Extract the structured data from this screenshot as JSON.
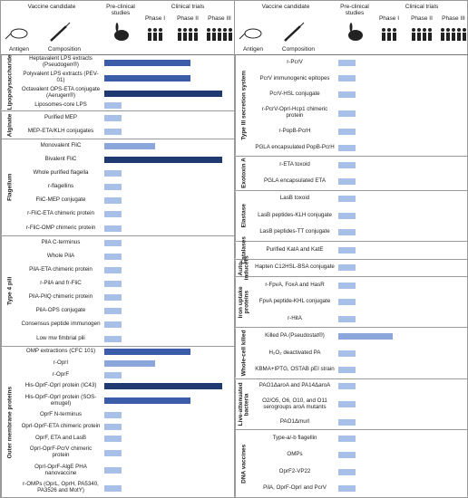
{
  "header": {
    "vaccine_candidate": "Vaccine candidate",
    "antigen": "Antigen",
    "composition": "Composition",
    "preclinical": "Pre-clinical studies",
    "clinical_trials": "Clinical trials",
    "phases": [
      "Phase I",
      "Phase II",
      "Phase III"
    ]
  },
  "panels": [
    {
      "groups": [
        {
          "label": "Lipopolysaccharide",
          "items": [
            {
              "name": "Heptavalent LPS extracts (Pseudogen®)",
              "stage": 2.5,
              "color": "#3b5ca8"
            },
            {
              "name": "Polyvalent LPS extracts (PEV-01)",
              "stage": 2.5,
              "color": "#3b5ca8"
            },
            {
              "name": "Octavalent OPS-ETA conjugate (Aerugen®)",
              "stage": 3.5,
              "color": "#1f3a70"
            },
            {
              "name": "Liposomes-core LPS",
              "stage": 0.45,
              "color": "#a8bfe8"
            }
          ]
        },
        {
          "label": "Alginate",
          "items": [
            {
              "name": "Purified MEP",
              "stage": 0.45,
              "color": "#a8bfe8"
            },
            {
              "name": "MEP-ETA/KLH conjugates",
              "stage": 0.45,
              "color": "#a8bfe8"
            }
          ]
        },
        {
          "label": "Flagellum",
          "items": [
            {
              "name": "Monovalent FliC",
              "stage": 1.4,
              "color": "#8ba6da"
            },
            {
              "name": "Bivalent FliC",
              "stage": 3.5,
              "color": "#1f3a70"
            },
            {
              "name": "Whole purified flagella",
              "stage": 0.45,
              "color": "#a8bfe8"
            },
            {
              "name": "r-flagellins",
              "stage": 0.45,
              "color": "#a8bfe8"
            },
            {
              "name": "FliC-MEP conjugate",
              "stage": 0.45,
              "color": "#a8bfe8"
            },
            {
              "name": "r-FliC-ETA chimeric protein",
              "stage": 0.45,
              "color": "#a8bfe8"
            },
            {
              "name": "r-FliC-OMP chimeric protein",
              "stage": 0.45,
              "color": "#a8bfe8"
            }
          ]
        },
        {
          "label": "Type 4 pili",
          "items": [
            {
              "name": "PilA C-terminus",
              "stage": 0.45,
              "color": "#a8bfe8"
            },
            {
              "name": "Whole PilA",
              "stage": 0.45,
              "color": "#a8bfe8"
            },
            {
              "name": "PilA-ETA chimeric protein",
              "stage": 0.45,
              "color": "#a8bfe8"
            },
            {
              "name": "r-PilA and fr-FliC",
              "stage": 0.45,
              "color": "#a8bfe8"
            },
            {
              "name": "PilA-PilQ chimeric protein",
              "stage": 0.45,
              "color": "#a8bfe8"
            },
            {
              "name": "PilA-OPS conjugate",
              "stage": 0.45,
              "color": "#a8bfe8"
            },
            {
              "name": "Consensus peptide immunogen",
              "stage": 0.45,
              "color": "#a8bfe8"
            },
            {
              "name": "Low mw fimbrial pili",
              "stage": 0.45,
              "color": "#a8bfe8"
            }
          ]
        },
        {
          "label": "Outer membrane proteins",
          "items": [
            {
              "name": "OMP extractions (CFC 101)",
              "stage": 2.5,
              "color": "#3b5ca8"
            },
            {
              "name": "r-OprI",
              "stage": 1.4,
              "color": "#8ba6da"
            },
            {
              "name": "r-OprF",
              "stage": 0.45,
              "color": "#a8bfe8"
            },
            {
              "name": "His-OprF-OprI protein (IC43)",
              "stage": 3.5,
              "color": "#1f3a70"
            },
            {
              "name": "His-OprF-OprI protein (SOS-emugel)",
              "stage": 2.5,
              "color": "#3b5ca8"
            },
            {
              "name": "OprF N-terminus",
              "stage": 0.45,
              "color": "#a8bfe8"
            },
            {
              "name": "OprI-OprF-ETA chimeric protein",
              "stage": 0.45,
              "color": "#a8bfe8"
            },
            {
              "name": "OprF, ETA and LasB",
              "stage": 0.45,
              "color": "#a8bfe8"
            },
            {
              "name": "OprI-OprF-PcrV chimeric protein",
              "stage": 0.45,
              "color": "#a8bfe8"
            },
            {
              "name": "OprI-OprF-AlgE PHA nanovaccine",
              "stage": 0.45,
              "color": "#a8bfe8"
            },
            {
              "name": "r-OMPs (OprL, OprH, PA5340, PA3526 and MotY)",
              "stage": 0.45,
              "color": "#a8bfe8"
            }
          ]
        }
      ]
    },
    {
      "groups": [
        {
          "label": "Type III secretion system",
          "items": [
            {
              "name": "r-PcrV",
              "stage": 0.45,
              "color": "#a8bfe8"
            },
            {
              "name": "PcrV immunogenic epitopes",
              "stage": 0.45,
              "color": "#a8bfe8"
            },
            {
              "name": "PcrV-HSL conjugate",
              "stage": 0.45,
              "color": "#a8bfe8"
            },
            {
              "name": "r-PcrV-OprI-Hcp1 chimeric protein",
              "stage": 0.45,
              "color": "#a8bfe8"
            },
            {
              "name": "r-PopB-PcrH",
              "stage": 0.45,
              "color": "#a8bfe8"
            },
            {
              "name": "PGLA encapsulated PopB-PcrH",
              "stage": 0.45,
              "color": "#a8bfe8"
            }
          ]
        },
        {
          "label": "Exotoxin A",
          "items": [
            {
              "name": "r-ETA toxoid",
              "stage": 0.45,
              "color": "#a8bfe8"
            },
            {
              "name": "PGLA encapsulated ETA",
              "stage": 0.45,
              "color": "#a8bfe8"
            }
          ]
        },
        {
          "label": "Elastase",
          "items": [
            {
              "name": "LasB toxoid",
              "stage": 0.45,
              "color": "#a8bfe8"
            },
            {
              "name": "LasB peptides-KLH conjugate",
              "stage": 0.45,
              "color": "#a8bfe8"
            },
            {
              "name": "LasB peptides-TT conjugate",
              "stage": 0.45,
              "color": "#a8bfe8"
            }
          ]
        },
        {
          "label": "Catalases",
          "items": [
            {
              "name": "Purified KatA and KatE",
              "stage": 0.45,
              "color": "#a8bfe8"
            }
          ]
        },
        {
          "label": "Auto-inducers",
          "items": [
            {
              "name": "Hapten C12HSL-BSA conjugate",
              "stage": 0.45,
              "color": "#a8bfe8"
            }
          ]
        },
        {
          "label": "Iron uptake proteins",
          "items": [
            {
              "name": "r-FpvA, FoxA and HasR",
              "stage": 0.45,
              "color": "#a8bfe8"
            },
            {
              "name": "FpvA peptide-KHL conjugate",
              "stage": 0.45,
              "color": "#a8bfe8"
            },
            {
              "name": "r-HitA",
              "stage": 0.45,
              "color": "#a8bfe8"
            }
          ]
        },
        {
          "label": "Whole-cell killed",
          "items": [
            {
              "name": "Killed PA (Pseudostat®)",
              "stage": 1.5,
              "color": "#8ba6da"
            },
            {
              "name": "H₂O₂ deactivated PA",
              "stage": 0.45,
              "color": "#a8bfe8"
            },
            {
              "name": "KBMA+IPTG, OSTAB pEI strain",
              "stage": 0.45,
              "color": "#a8bfe8"
            }
          ]
        },
        {
          "label": "Live-attenuated bacteria",
          "items": [
            {
              "name": "PAO1ΔaroA and PA14ΔaroA",
              "stage": 0.45,
              "color": "#a8bfe8"
            },
            {
              "name": "O2/O5, O6, O10, and O11 serogroups aroA mutants",
              "stage": 0.45,
              "color": "#a8bfe8"
            },
            {
              "name": "PAO1Δmurl",
              "stage": 0.45,
              "color": "#a8bfe8"
            }
          ]
        },
        {
          "label": "DNA vaccines",
          "items": [
            {
              "name": "Type-a/-b flagellin",
              "stage": 0.45,
              "color": "#a8bfe8"
            },
            {
              "name": "OMPs",
              "stage": 0.45,
              "color": "#a8bfe8"
            },
            {
              "name": "OprF2-VP22",
              "stage": 0.45,
              "color": "#a8bfe8"
            },
            {
              "name": "PilA, OprF-OprI and PcrV",
              "stage": 0.45,
              "color": "#a8bfe8"
            }
          ]
        }
      ]
    }
  ]
}
